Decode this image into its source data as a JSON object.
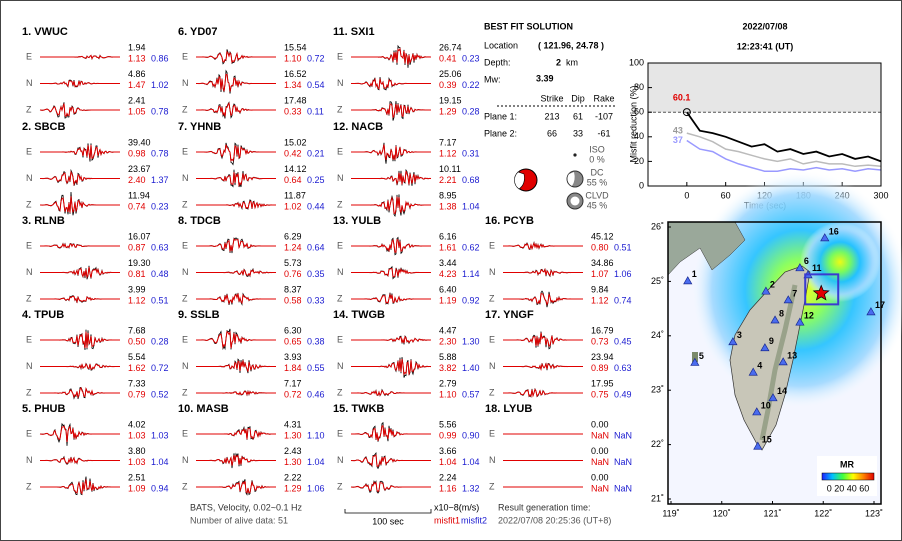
{
  "components": [
    "E",
    "N",
    "Z"
  ],
  "stations": [
    {
      "label": "1.  VWUC",
      "traces": [
        [
          "1.94",
          "1.13",
          "0.86"
        ],
        [
          "4.86",
          "1.47",
          "1.02"
        ],
        [
          "2.41",
          "1.05",
          "0.78"
        ]
      ]
    },
    {
      "label": "2.  SBCB",
      "traces": [
        [
          "39.40",
          "0.98",
          "0.78"
        ],
        [
          "23.67",
          "2.40",
          "1.37"
        ],
        [
          "11.94",
          "0.74",
          "0.23"
        ]
      ]
    },
    {
      "label": "3.  RLNB",
      "traces": [
        [
          "16.07",
          "0.87",
          "0.63"
        ],
        [
          "19.30",
          "0.81",
          "0.48"
        ],
        [
          "3.99",
          "1.12",
          "0.51"
        ]
      ]
    },
    {
      "label": "4.  TPUB",
      "traces": [
        [
          "7.68",
          "0.50",
          "0.28"
        ],
        [
          "5.54",
          "1.62",
          "0.72"
        ],
        [
          "7.33",
          "0.79",
          "0.52"
        ]
      ]
    },
    {
      "label": "5.  PHUB",
      "traces": [
        [
          "4.02",
          "1.03",
          "1.03"
        ],
        [
          "3.80",
          "1.03",
          "1.04"
        ],
        [
          "2.51",
          "1.09",
          "0.94"
        ]
      ]
    },
    {
      "label": "6.  YD07",
      "traces": [
        [
          "15.54",
          "1.10",
          "0.72"
        ],
        [
          "16.52",
          "1.34",
          "0.54"
        ],
        [
          "17.48",
          "0.33",
          "0.11"
        ]
      ]
    },
    {
      "label": "7.  YHNB",
      "traces": [
        [
          "15.02",
          "0.42",
          "0.21"
        ],
        [
          "14.12",
          "0.64",
          "0.25"
        ],
        [
          "11.87",
          "1.02",
          "0.44"
        ]
      ]
    },
    {
      "label": "8.  TDCB",
      "traces": [
        [
          "6.29",
          "1.24",
          "0.64"
        ],
        [
          "5.73",
          "0.76",
          "0.35"
        ],
        [
          "8.37",
          "0.58",
          "0.33"
        ]
      ]
    },
    {
      "label": "9.  SSLB",
      "traces": [
        [
          "6.30",
          "0.65",
          "0.38"
        ],
        [
          "3.93",
          "1.84",
          "0.55"
        ],
        [
          "7.17",
          "0.72",
          "0.46"
        ]
      ]
    },
    {
      "label": "10. MASB",
      "traces": [
        [
          "4.31",
          "1.30",
          "1.10"
        ],
        [
          "2.43",
          "1.30",
          "1.04"
        ],
        [
          "2.22",
          "1.29",
          "1.06"
        ]
      ]
    },
    {
      "label": "11. SXI1",
      "traces": [
        [
          "26.74",
          "0.41",
          "0.23"
        ],
        [
          "25.06",
          "0.39",
          "0.22"
        ],
        [
          "19.15",
          "1.29",
          "0.28"
        ]
      ]
    },
    {
      "label": "12. NACB",
      "traces": [
        [
          "7.17",
          "1.12",
          "0.31"
        ],
        [
          "10.11",
          "2.21",
          "0.68"
        ],
        [
          "8.95",
          "1.38",
          "1.04"
        ]
      ]
    },
    {
      "label": "13. YULB",
      "traces": [
        [
          "6.16",
          "1.61",
          "0.62"
        ],
        [
          "3.44",
          "4.23",
          "1.14"
        ],
        [
          "6.40",
          "1.19",
          "0.92"
        ]
      ]
    },
    {
      "label": "14. TWGB",
      "traces": [
        [
          "4.47",
          "2.30",
          "1.30"
        ],
        [
          "5.88",
          "3.82",
          "1.40"
        ],
        [
          "2.79",
          "1.10",
          "0.57"
        ]
      ]
    },
    {
      "label": "15. TWKB",
      "traces": [
        [
          "5.56",
          "0.99",
          "0.90"
        ],
        [
          "3.66",
          "1.04",
          "1.04"
        ],
        [
          "2.24",
          "1.16",
          "1.32"
        ]
      ]
    },
    {
      "label": "16. PCYB",
      "traces": [
        [
          "45.12",
          "0.80",
          "0.51"
        ],
        [
          "34.86",
          "1.07",
          "1.06"
        ],
        [
          "9.84",
          "1.12",
          "0.74"
        ]
      ]
    },
    {
      "label": "17. YNGF",
      "traces": [
        [
          "16.79",
          "0.73",
          "0.45"
        ],
        [
          "23.94",
          "0.89",
          "0.63"
        ],
        [
          "17.95",
          "0.75",
          "0.49"
        ]
      ]
    },
    {
      "label": "18. LYUB",
      "traces": [
        [
          "0.00",
          "NaN",
          "NaN"
        ],
        [
          "0.00",
          "NaN",
          "NaN"
        ],
        [
          "0.00",
          "NaN",
          "NaN"
        ]
      ]
    }
  ],
  "solution": {
    "title": "BEST FIT SOLUTION",
    "location_label": "Location",
    "location": "( 121.96, 24.78 )",
    "depth_label": "Depth:",
    "depth": "2",
    "depth_unit": "km",
    "mw_label": "Mw:",
    "mw": "3.39",
    "columns": [
      "Strike",
      "Dip",
      "Rake"
    ],
    "planes": [
      {
        "label": "Plane 1:",
        "values": [
          "213",
          "61",
          "-107"
        ]
      },
      {
        "label": "Plane 2:",
        "values": [
          "66",
          "33",
          "-61"
        ]
      }
    ],
    "iso": {
      "label": "ISO",
      "value": "0 %"
    },
    "dc": {
      "label": "DC",
      "value": "55 %"
    },
    "clvd": {
      "label": "CLVD",
      "value": "45 %"
    }
  },
  "datetime": {
    "date": "2022/07/08",
    "time": "12:23:41  (UT)"
  },
  "chart_data": {
    "type": "line",
    "x_label": "Time (sec)",
    "y_label": "Misfit reduction (%)",
    "xlim": [
      -60,
      300
    ],
    "ylim": [
      0,
      100
    ],
    "xticks": [
      0,
      60,
      120,
      180,
      240,
      300
    ],
    "yticks": [
      0,
      20,
      40,
      60,
      80,
      100
    ],
    "x": [
      0,
      20,
      40,
      60,
      80,
      100,
      120,
      140,
      160,
      180,
      200,
      220,
      240,
      260,
      280,
      300
    ],
    "series": [
      {
        "color": "#bbbbbb",
        "values": [
          43,
          40,
          36,
          30,
          28,
          25,
          22,
          20,
          22,
          18,
          20,
          18,
          18,
          16,
          17,
          16
        ]
      },
      {
        "color": "#9999ff",
        "values": [
          37,
          30,
          28,
          22,
          18,
          15,
          12,
          12,
          14,
          13,
          15,
          13,
          14,
          12,
          14,
          13
        ]
      },
      {
        "color": "#000000",
        "values": [
          60.1,
          45,
          43,
          40,
          36,
          32,
          34,
          28,
          30,
          26,
          28,
          24,
          26,
          22,
          24,
          20
        ]
      }
    ],
    "annotations": [
      {
        "text": "60.1",
        "color": "#e00000"
      },
      {
        "text": "43",
        "color": "#999999"
      },
      {
        "text": "37",
        "color": "#9999ff"
      }
    ]
  },
  "map": {
    "lonlim": [
      119,
      123
    ],
    "latlim": [
      21,
      26
    ],
    "lonticks": [
      {
        "value": 119,
        "label": "119˚"
      },
      {
        "value": 120,
        "label": "120˚"
      },
      {
        "value": 121,
        "label": "121˚"
      },
      {
        "value": 122,
        "label": "122˚"
      },
      {
        "value": 123,
        "label": "123˚"
      }
    ],
    "latticks": [
      {
        "value": 21,
        "label": "21˚"
      },
      {
        "value": 22,
        "label": "22˚"
      },
      {
        "value": 23,
        "label": "23˚"
      },
      {
        "value": 24,
        "label": "24˚"
      },
      {
        "value": 25,
        "label": "25˚"
      },
      {
        "value": 26,
        "label": "26˚"
      }
    ],
    "stations": [
      {
        "label": "1",
        "lon": 119.33,
        "lat": 25.01
      },
      {
        "label": "2",
        "lon": 120.87,
        "lat": 24.82
      },
      {
        "label": "3",
        "lon": 120.22,
        "lat": 23.89
      },
      {
        "label": "4",
        "lon": 120.62,
        "lat": 23.33
      },
      {
        "label": "5",
        "lon": 119.47,
        "lat": 23.51
      },
      {
        "label": "6",
        "lon": 121.54,
        "lat": 25.25
      },
      {
        "label": "7",
        "lon": 121.31,
        "lat": 24.66
      },
      {
        "label": "8",
        "lon": 121.05,
        "lat": 24.29
      },
      {
        "label": "9",
        "lon": 120.85,
        "lat": 23.78
      },
      {
        "label": "10",
        "lon": 120.69,
        "lat": 22.6
      },
      {
        "label": "11",
        "lon": 121.7,
        "lat": 25.12
      },
      {
        "label": "12",
        "lon": 121.54,
        "lat": 24.25
      },
      {
        "label": "13",
        "lon": 121.21,
        "lat": 23.52
      },
      {
        "label": "14",
        "lon": 121.01,
        "lat": 22.86
      },
      {
        "label": "15",
        "lon": 120.71,
        "lat": 21.97
      },
      {
        "label": "16",
        "lon": 122.03,
        "lat": 25.8
      },
      {
        "label": "17",
        "lon": 122.94,
        "lat": 24.44
      }
    ],
    "epicenter": {
      "lon": 121.96,
      "lat": 24.78
    },
    "colorbar": {
      "title": "MR",
      "labels": "0 20 40 60"
    }
  },
  "footer": {
    "filter": "BATS, Velocity, 0.02~0.1 Hz",
    "alive": "Number of alive data: 51",
    "scale": "100 sec",
    "units": "x10−8(m/s)",
    "misfit1": "misfit1",
    "misfit2": "misfit2",
    "gen_label": "Result generation time:",
    "gen_time": "2022/07/08 20:25:36 (UT+8)"
  }
}
